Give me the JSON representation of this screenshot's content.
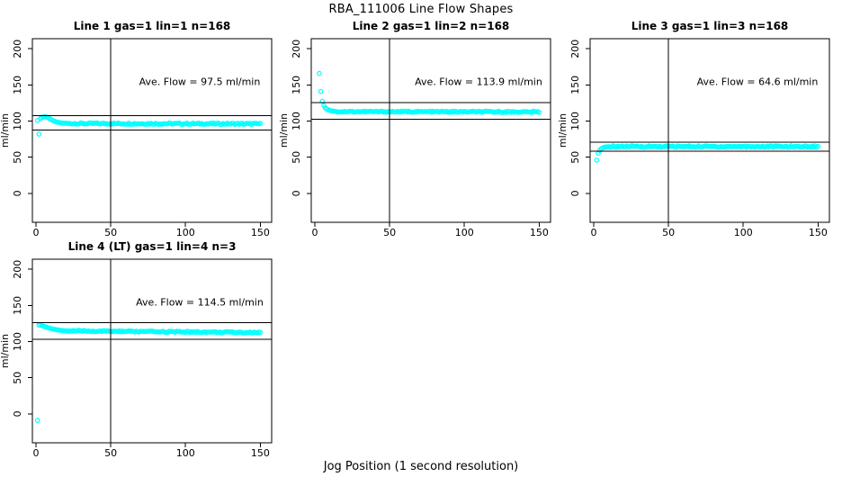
{
  "figure_title": "RBA_111006  Line Flow Shapes",
  "x_axis_label": "Jog Position (1 second resolution)",
  "colors": {
    "points": "#00FFFF",
    "axis": "#000000",
    "background": "#FFFFFF"
  },
  "chart_data": [
    {
      "type": "scatter",
      "title": "Line 1 gas=1 lin=1 n=168",
      "params": {
        "line": 1,
        "gas": 1,
        "lin": 1,
        "n": 168
      },
      "annotation": "Ave. Flow =  97.5  ml/min",
      "ave_flow_ml_min": 97.5,
      "ylabel": "ml/min",
      "xlim": [
        -2.4,
        157.6
      ],
      "ylim": [
        -40,
        214
      ],
      "x_ticks": [
        0,
        50,
        100,
        150
      ],
      "y_ticks": [
        0,
        50,
        100,
        150,
        200
      ],
      "vline_x": 50,
      "hlines": [
        107.25,
        87.75
      ],
      "transient_points": [
        [
          1,
          101
        ],
        [
          2,
          82
        ],
        [
          3,
          103.5
        ],
        [
          4,
          105
        ],
        [
          5,
          105.8
        ],
        [
          6,
          106
        ],
        [
          7,
          105.6
        ],
        [
          8,
          104.8
        ],
        [
          9,
          103.6
        ],
        [
          10,
          102.3
        ],
        [
          11,
          101.2
        ],
        [
          12,
          100.2
        ],
        [
          13,
          99.4
        ],
        [
          14,
          98.7
        ],
        [
          15,
          98.2
        ],
        [
          16,
          97.8
        ],
        [
          17,
          97.4
        ],
        [
          18,
          97.1
        ],
        [
          19,
          96.9
        ]
      ],
      "steady_band": {
        "x_start": 20,
        "x_end": 150,
        "x_step": 1,
        "level_start": 96.7,
        "level_end": 96.2,
        "noise_amp": 1.0
      }
    },
    {
      "type": "scatter",
      "title": "Line 2 gas=1 lin=2 n=168",
      "params": {
        "line": 2,
        "gas": 1,
        "lin": 2,
        "n": 168
      },
      "annotation": "Ave. Flow =  113.9  ml/min",
      "ave_flow_ml_min": 113.9,
      "ylabel": "ml/min",
      "xlim": [
        -2.4,
        157.6
      ],
      "ylim": [
        -40,
        214
      ],
      "x_ticks": [
        0,
        50,
        100,
        150
      ],
      "y_ticks": [
        0,
        50,
        100,
        150,
        200
      ],
      "vline_x": 50,
      "hlines": [
        125.29,
        102.51
      ],
      "transient_points": [
        [
          3,
          166
        ],
        [
          4,
          141
        ],
        [
          5,
          127.5
        ],
        [
          6,
          121.5
        ],
        [
          7,
          118.3
        ],
        [
          8,
          116.6
        ],
        [
          9,
          115.5
        ],
        [
          10,
          114.8
        ],
        [
          11,
          114.3
        ],
        [
          12,
          113.9
        ],
        [
          13,
          113.6
        ],
        [
          14,
          113.4
        ]
      ],
      "steady_band": {
        "x_start": 15,
        "x_end": 150,
        "x_step": 1,
        "level_start": 113.1,
        "level_end": 112.7,
        "noise_amp": 0.9
      }
    },
    {
      "type": "scatter",
      "title": "Line 3 gas=1 lin=3 n=168",
      "params": {
        "line": 3,
        "gas": 1,
        "lin": 3,
        "n": 168
      },
      "annotation": "Ave. Flow =  64.6  ml/min",
      "ave_flow_ml_min": 64.6,
      "ylabel": "ml/min",
      "xlim": [
        -2.4,
        157.6
      ],
      "ylim": [
        -40,
        214
      ],
      "x_ticks": [
        0,
        50,
        100,
        150
      ],
      "y_ticks": [
        0,
        50,
        100,
        150,
        200
      ],
      "vline_x": 50,
      "hlines": [
        71.06,
        58.14
      ],
      "transient_points": [
        [
          2,
          46
        ],
        [
          3,
          55.5
        ],
        [
          4,
          59.5
        ],
        [
          5,
          61.8
        ],
        [
          6,
          63
        ],
        [
          7,
          63.8
        ],
        [
          8,
          64.2
        ],
        [
          9,
          64.5
        ],
        [
          10,
          64.7
        ]
      ],
      "steady_band": {
        "x_start": 11,
        "x_end": 150,
        "x_step": 1,
        "level_start": 64.8,
        "level_end": 64.8,
        "noise_amp": 0.9
      }
    },
    {
      "type": "scatter",
      "title": "Line 4 (LT) gas=1 lin=4 n=3",
      "params": {
        "line": 4,
        "label_extra": "(LT)",
        "gas": 1,
        "lin": 4,
        "n": 3
      },
      "annotation": "Ave. Flow =  114.5  ml/min",
      "ave_flow_ml_min": 114.5,
      "ylabel": "ml/min",
      "xlim": [
        -2.4,
        157.6
      ],
      "ylim": [
        -40,
        214
      ],
      "x_ticks": [
        0,
        50,
        100,
        150
      ],
      "y_ticks": [
        0,
        50,
        100,
        150,
        200
      ],
      "vline_x": 50,
      "hlines": [
        125.95,
        103.05
      ],
      "transient_points": [
        [
          1,
          -9
        ],
        [
          2,
          123
        ],
        [
          3,
          122.6
        ],
        [
          4,
          122.1
        ],
        [
          5,
          121.4
        ],
        [
          6,
          120.7
        ],
        [
          7,
          120
        ],
        [
          8,
          119.3
        ],
        [
          9,
          118.7
        ],
        [
          10,
          118.1
        ],
        [
          11,
          117.6
        ],
        [
          12,
          117.1
        ],
        [
          13,
          116.7
        ],
        [
          14,
          116.3
        ],
        [
          15,
          116
        ],
        [
          16,
          115.7
        ],
        [
          17,
          115.4
        ],
        [
          18,
          115.2
        ],
        [
          19,
          115
        ]
      ],
      "steady_band": {
        "x_start": 20,
        "x_end": 150,
        "x_step": 1,
        "level_start": 114.8,
        "level_end": 112.5,
        "noise_amp": 0.9
      }
    }
  ]
}
